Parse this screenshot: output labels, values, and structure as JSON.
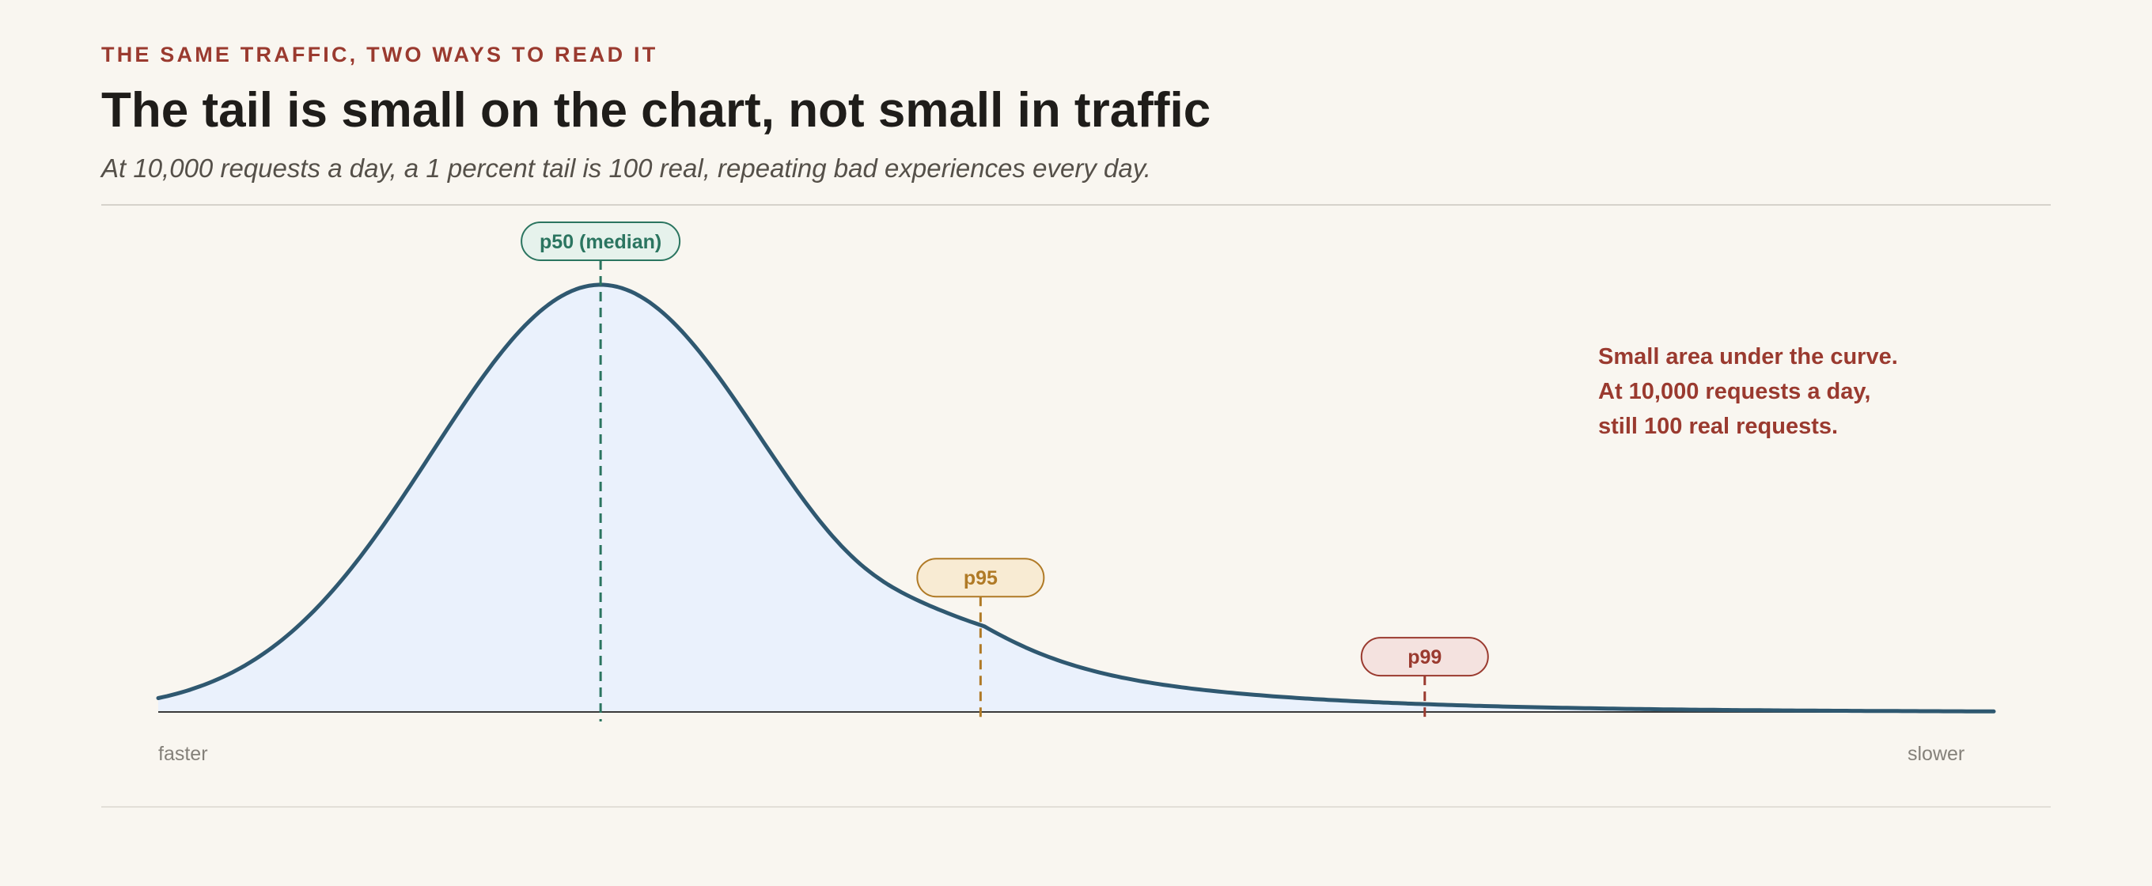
{
  "header": {
    "eyebrow": "THE SAME TRAFFIC, TWO WAYS TO READ IT",
    "title": "The tail is small on the chart, not small in traffic",
    "subtitle": "At 10,000 requests a day, a 1 percent tail is 100 real, repeating bad experiences every day."
  },
  "chart_data": {
    "type": "area",
    "xlabel_left": "faster",
    "xlabel_right": "slower",
    "curve_color": "#2f5870",
    "fill_color": "#eaf1fc",
    "shape": "right-skewed latency distribution",
    "markers": [
      {
        "id": "p50",
        "label": "p50 (median)",
        "color": "#2b7560",
        "fill": "#e6f2ec",
        "x_fraction": 0.241
      },
      {
        "id": "p95",
        "label": "p95",
        "color": "#b07a26",
        "fill": "#f8ebd3",
        "x_fraction": 0.448
      },
      {
        "id": "p99",
        "label": "p99",
        "color": "#9a3a2f",
        "fill": "#f4e2df",
        "x_fraction": 0.69
      }
    ],
    "annotation": {
      "lines": [
        "Small area under the curve.",
        "At 10,000 requests a day,",
        "still 100 real requests."
      ],
      "color": "#9a3a2f"
    }
  }
}
